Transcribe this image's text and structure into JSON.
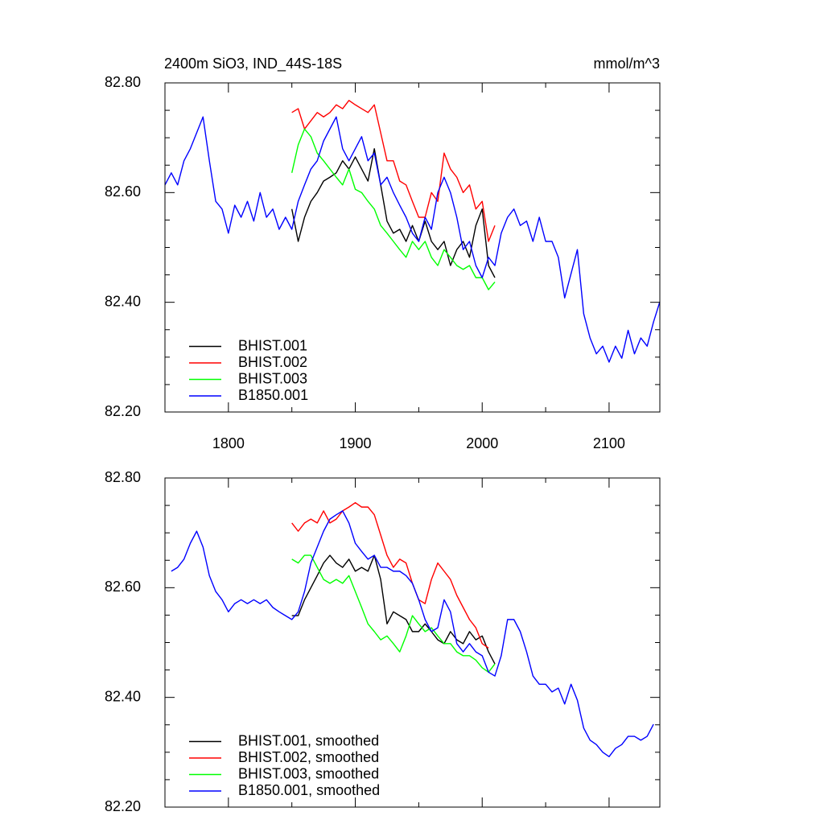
{
  "chart_data": [
    {
      "type": "line",
      "title": "2400m SiO3, IND_44S-18S",
      "units": "mmol/m^3",
      "xlim": [
        1750,
        2140
      ],
      "xticks": [
        1800,
        1900,
        2000,
        2100
      ],
      "xticks_minor": [
        1850,
        1950,
        2050
      ],
      "xtick_labels": true,
      "ylim": [
        82.2,
        82.8
      ],
      "yticks": [
        {
          "value": 82.2,
          "label": "82.20"
        },
        {
          "value": 82.4,
          "label": "82.40"
        },
        {
          "value": 82.6,
          "label": "82.60"
        },
        {
          "value": 82.8,
          "label": "82.80"
        }
      ],
      "yticks_minor": [
        82.25,
        82.3,
        82.35,
        82.45,
        82.5,
        82.55,
        82.65,
        82.7,
        82.75
      ],
      "legend_position": "lower left",
      "series": [
        {
          "name": "BHIST.001",
          "color": "#000000",
          "x": [
            1850,
            1855,
            1860,
            1865,
            1870,
            1875,
            1880,
            1885,
            1890,
            1895,
            1900,
            1905,
            1910,
            1915,
            1920,
            1925,
            1930,
            1935,
            1940,
            1945,
            1950,
            1955,
            1960,
            1965,
            1970,
            1975,
            1980,
            1985,
            1990,
            1995,
            2000,
            2005,
            2010
          ],
          "values": [
            82.57,
            82.511,
            82.555,
            82.584,
            82.6,
            82.621,
            82.628,
            82.636,
            82.658,
            82.643,
            82.665,
            82.643,
            82.621,
            82.68,
            82.614,
            82.548,
            82.526,
            82.533,
            82.511,
            82.54,
            82.511,
            82.548,
            82.511,
            82.496,
            82.511,
            82.467,
            82.496,
            82.511,
            82.482,
            82.54,
            82.57,
            82.467,
            82.445
          ]
        },
        {
          "name": "BHIST.002",
          "color": "#ff0000",
          "x": [
            1850,
            1855,
            1860,
            1865,
            1870,
            1875,
            1880,
            1885,
            1890,
            1895,
            1900,
            1905,
            1910,
            1915,
            1920,
            1925,
            1930,
            1935,
            1940,
            1945,
            1950,
            1955,
            1960,
            1965,
            1970,
            1975,
            1980,
            1985,
            1990,
            1995,
            2000,
            2005,
            2010
          ],
          "values": [
            82.746,
            82.753,
            82.716,
            82.731,
            82.746,
            82.738,
            82.746,
            82.76,
            82.753,
            82.768,
            82.76,
            82.753,
            82.746,
            82.76,
            82.709,
            82.658,
            82.658,
            82.621,
            82.614,
            82.584,
            82.555,
            82.555,
            82.6,
            82.584,
            82.672,
            82.643,
            82.628,
            82.6,
            82.614,
            82.57,
            82.584,
            82.511,
            82.54
          ]
        },
        {
          "name": "BHIST.003",
          "color": "#00ff00",
          "x": [
            1850,
            1855,
            1860,
            1865,
            1870,
            1875,
            1880,
            1885,
            1890,
            1895,
            1900,
            1905,
            1910,
            1915,
            1920,
            1925,
            1930,
            1935,
            1940,
            1945,
            1950,
            1955,
            1960,
            1965,
            1970,
            1975,
            1980,
            1985,
            1990,
            1995,
            2000,
            2005,
            2010
          ],
          "values": [
            82.636,
            82.687,
            82.716,
            82.702,
            82.672,
            82.658,
            82.643,
            82.628,
            82.614,
            82.643,
            82.606,
            82.6,
            82.584,
            82.57,
            82.54,
            82.526,
            82.511,
            82.496,
            82.482,
            82.511,
            82.496,
            82.511,
            82.482,
            82.467,
            82.496,
            82.482,
            82.467,
            82.46,
            82.467,
            82.445,
            82.445,
            82.423,
            82.437
          ]
        },
        {
          "name": "B1850.001",
          "color": "#0000ff",
          "x": [
            1750,
            1755,
            1760,
            1765,
            1770,
            1775,
            1780,
            1785,
            1790,
            1795,
            1800,
            1805,
            1810,
            1815,
            1820,
            1825,
            1830,
            1835,
            1840,
            1845,
            1850,
            1855,
            1860,
            1865,
            1870,
            1875,
            1880,
            1885,
            1890,
            1895,
            1900,
            1905,
            1910,
            1915,
            1920,
            1925,
            1930,
            1935,
            1940,
            1945,
            1950,
            1955,
            1960,
            1965,
            1970,
            1975,
            1980,
            1985,
            1990,
            1995,
            2000,
            2005,
            2010,
            2015,
            2020,
            2025,
            2030,
            2035,
            2040,
            2045,
            2050,
            2055,
            2060,
            2065,
            2070,
            2075,
            2080,
            2085,
            2090,
            2095,
            2100,
            2105,
            2110,
            2115,
            2120,
            2125,
            2130,
            2135,
            2140
          ],
          "values": [
            82.614,
            82.636,
            82.614,
            82.658,
            82.68,
            82.709,
            82.738,
            82.658,
            82.584,
            82.57,
            82.526,
            82.577,
            82.555,
            82.584,
            82.548,
            82.6,
            82.555,
            82.57,
            82.533,
            82.555,
            82.533,
            82.584,
            82.614,
            82.643,
            82.658,
            82.694,
            82.716,
            82.738,
            82.68,
            82.658,
            82.68,
            82.702,
            82.658,
            82.672,
            82.614,
            82.628,
            82.6,
            82.577,
            82.555,
            82.526,
            82.511,
            82.555,
            82.533,
            82.6,
            82.628,
            82.6,
            82.555,
            82.496,
            82.511,
            82.467,
            82.445,
            82.482,
            82.467,
            82.526,
            82.555,
            82.57,
            82.54,
            82.548,
            82.511,
            82.555,
            82.511,
            82.511,
            82.482,
            82.408,
            82.452,
            82.496,
            82.379,
            82.335,
            82.306,
            82.32,
            82.291,
            82.32,
            82.298,
            82.349,
            82.306,
            82.335,
            82.32,
            82.364,
            82.401
          ]
        }
      ]
    },
    {
      "type": "line",
      "xlim": [
        1750,
        2140
      ],
      "xticks": [
        1800,
        1900,
        2000,
        2100
      ],
      "xticks_minor": [
        1850,
        1950,
        2050
      ],
      "xtick_labels": false,
      "ylim": [
        82.2,
        82.8
      ],
      "yticks": [
        {
          "value": 82.2,
          "label": "82.20"
        },
        {
          "value": 82.4,
          "label": "82.40"
        },
        {
          "value": 82.6,
          "label": "82.60"
        },
        {
          "value": 82.8,
          "label": "82.80"
        }
      ],
      "yticks_minor": [
        82.25,
        82.3,
        82.35,
        82.45,
        82.5,
        82.55,
        82.65,
        82.7,
        82.75
      ],
      "legend_position": "lower left",
      "series": [
        {
          "name": "BHIST.001, smoothed",
          "color": "#000000",
          "x": [
            1850,
            1855,
            1860,
            1865,
            1870,
            1875,
            1880,
            1885,
            1890,
            1895,
            1900,
            1905,
            1910,
            1915,
            1920,
            1925,
            1930,
            1935,
            1940,
            1945,
            1950,
            1955,
            1960,
            1965,
            1970,
            1975,
            1980,
            1985,
            1990,
            1995,
            2000,
            2005,
            2010
          ],
          "values": [
            82.549,
            82.549,
            82.578,
            82.6,
            82.622,
            82.645,
            82.659,
            82.645,
            82.637,
            82.652,
            82.63,
            82.637,
            82.63,
            82.659,
            82.615,
            82.534,
            82.556,
            82.549,
            82.542,
            82.52,
            82.52,
            82.534,
            82.52,
            82.505,
            82.498,
            82.52,
            82.505,
            82.498,
            82.52,
            82.505,
            82.512,
            82.483,
            82.461
          ]
        },
        {
          "name": "BHIST.002, smoothed",
          "color": "#ff0000",
          "x": [
            1850,
            1855,
            1860,
            1865,
            1870,
            1875,
            1880,
            1885,
            1890,
            1895,
            1900,
            1905,
            1910,
            1915,
            1920,
            1925,
            1930,
            1935,
            1940,
            1945,
            1950,
            1955,
            1960,
            1965,
            1970,
            1975,
            1980,
            1985,
            1990,
            1995,
            2000,
            2005
          ],
          "values": [
            82.718,
            82.703,
            82.718,
            82.725,
            82.718,
            82.74,
            82.718,
            82.725,
            82.74,
            82.747,
            82.755,
            82.747,
            82.747,
            82.733,
            82.696,
            82.659,
            82.637,
            82.652,
            82.645,
            82.608,
            82.578,
            82.571,
            82.615,
            82.645,
            82.63,
            82.615,
            82.586,
            82.564,
            82.542,
            82.527,
            82.498,
            82.49
          ]
        },
        {
          "name": "BHIST.003, smoothed",
          "color": "#00ff00",
          "x": [
            1850,
            1855,
            1860,
            1865,
            1870,
            1875,
            1880,
            1885,
            1890,
            1895,
            1900,
            1905,
            1910,
            1915,
            1920,
            1925,
            1930,
            1935,
            1940,
            1945,
            1950,
            1955,
            1960,
            1965,
            1970,
            1975,
            1980,
            1985,
            1990,
            1995,
            2000,
            2005,
            2010
          ],
          "values": [
            82.652,
            82.645,
            82.659,
            82.659,
            82.637,
            82.615,
            82.608,
            82.615,
            82.608,
            82.622,
            82.593,
            82.564,
            82.534,
            82.52,
            82.505,
            82.512,
            82.498,
            82.483,
            82.512,
            82.549,
            82.534,
            82.52,
            82.527,
            82.512,
            82.498,
            82.498,
            82.483,
            82.476,
            82.476,
            82.468,
            82.454,
            82.446,
            82.461
          ]
        },
        {
          "name": "B1850.001, smoothed",
          "color": "#0000ff",
          "x": [
            1755,
            1760,
            1765,
            1770,
            1775,
            1780,
            1785,
            1790,
            1795,
            1800,
            1805,
            1810,
            1815,
            1820,
            1825,
            1830,
            1835,
            1840,
            1845,
            1850,
            1855,
            1860,
            1865,
            1870,
            1875,
            1880,
            1885,
            1890,
            1895,
            1900,
            1905,
            1910,
            1915,
            1920,
            1925,
            1930,
            1935,
            1940,
            1945,
            1950,
            1955,
            1960,
            1965,
            1970,
            1975,
            1980,
            1985,
            1990,
            1995,
            2000,
            2005,
            2010,
            2015,
            2020,
            2025,
            2030,
            2035,
            2040,
            2045,
            2050,
            2055,
            2060,
            2065,
            2070,
            2075,
            2080,
            2085,
            2090,
            2095,
            2100,
            2105,
            2110,
            2115,
            2120,
            2125,
            2130,
            2135
          ],
          "values": [
            82.63,
            82.637,
            82.652,
            82.681,
            82.703,
            82.674,
            82.622,
            82.593,
            82.578,
            82.556,
            82.571,
            82.578,
            82.571,
            82.578,
            82.571,
            82.578,
            82.564,
            82.556,
            82.549,
            82.542,
            82.556,
            82.593,
            82.645,
            82.674,
            82.703,
            82.725,
            82.733,
            82.74,
            82.718,
            82.681,
            82.666,
            82.652,
            82.659,
            82.637,
            82.637,
            82.63,
            82.63,
            82.622,
            82.608,
            82.578,
            82.542,
            82.52,
            82.527,
            82.578,
            82.556,
            82.498,
            82.483,
            82.498,
            82.483,
            82.476,
            82.446,
            82.439,
            82.476,
            82.542,
            82.542,
            82.52,
            82.483,
            82.439,
            82.424,
            82.424,
            82.41,
            82.417,
            82.388,
            82.424,
            82.395,
            82.344,
            82.322,
            82.314,
            82.3,
            82.292,
            82.307,
            82.314,
            82.329,
            82.329,
            82.322,
            82.329,
            82.351
          ]
        }
      ]
    }
  ]
}
